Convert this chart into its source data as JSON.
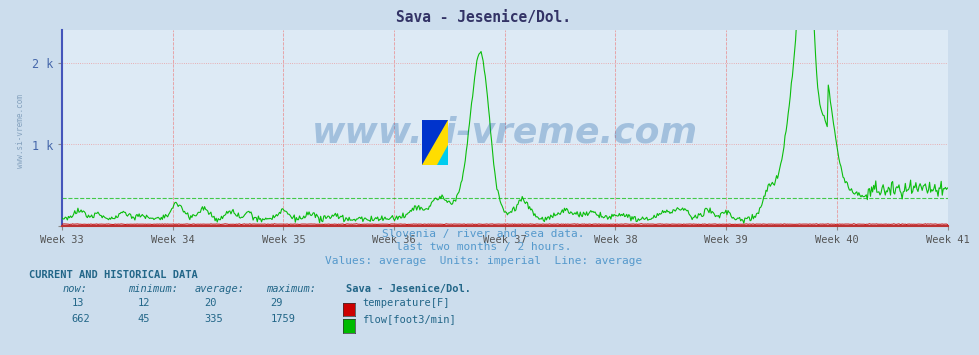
{
  "title": "Sava - Jesenice/Dol.",
  "subtitle1": "Slovenia / river and sea data.",
  "subtitle2": "last two months / 2 hours.",
  "subtitle3": "Values: average  Units: imperial  Line: average",
  "bg_color": "#ccdded",
  "plot_bg_color": "#ddeaf5",
  "grid_color_h_red": "#ff8888",
  "grid_color_v": "#aabbcc",
  "weeks": [
    "Week 33",
    "Week 34",
    "Week 35",
    "Week 36",
    "Week 37",
    "Week 38",
    "Week 39",
    "Week 40",
    "Week 41"
  ],
  "ylim": [
    0,
    2400
  ],
  "avg_flow_line": 335,
  "temp_color": "#cc0000",
  "flow_color": "#00bb00",
  "watermark_text": "www.si-vreme.com",
  "watermark_color": "#1a5fa8",
  "watermark_alpha": 0.3,
  "footer_color": "#5599cc",
  "current_and_historical": "CURRENT AND HISTORICAL DATA",
  "col_headers": [
    "now:",
    "minimum:",
    "average:",
    "maximum:",
    "Sava - Jesenice/Dol."
  ],
  "temp_row": [
    "13",
    "12",
    "20",
    "29",
    "temperature[F]"
  ],
  "flow_row": [
    "662",
    "45",
    "335",
    "1759",
    "flow[foot3/min]"
  ]
}
